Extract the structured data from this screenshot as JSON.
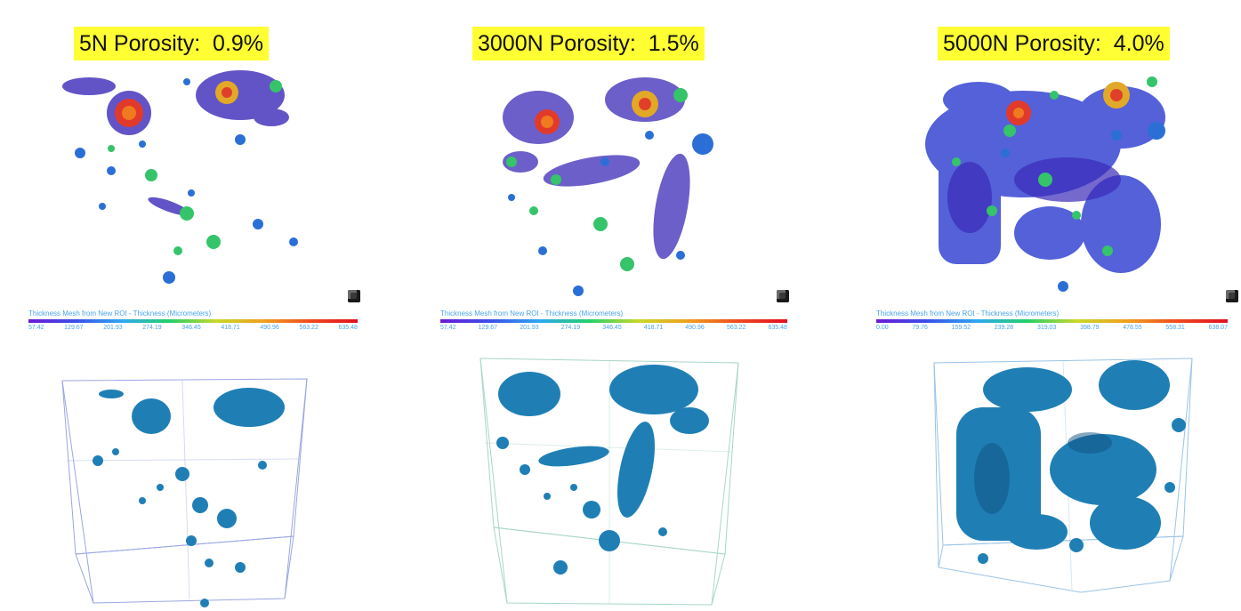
{
  "panels": [
    {
      "title": "5N Porosity:  0.9%",
      "legend_title": "Thickness Mesh from New ROI - Thickness (Micrometers)",
      "legend_ticks": [
        "57.42",
        "129.67",
        "201.93",
        "274.19",
        "346.45",
        "418.71",
        "490.96",
        "563.22",
        "635.48"
      ]
    },
    {
      "title": "3000N Porosity:  1.5%",
      "legend_title": "Thickness Mesh from New ROI - Thickness (Micrometers)",
      "legend_ticks": [
        "57.42",
        "129.67",
        "201.93",
        "274.19",
        "346.45",
        "418.71",
        "490.96",
        "563.22",
        "635.48"
      ]
    },
    {
      "title": "5000N Porosity:  4.0%",
      "legend_title": "Thickness Mesh from New ROI - Thickness (Micrometers)",
      "legend_ticks": [
        "0.00",
        "79.76",
        "159.52",
        "239.28",
        "319.03",
        "398.79",
        "478.55",
        "558.31",
        "638.07"
      ]
    }
  ],
  "colors": {
    "title_highlight": "#ffff33",
    "legend_text": "#4aa4ea",
    "pore_blue": "#1f7fb5",
    "box_edge": "#9aa6e0"
  },
  "icons": [
    "cube-orientation-icon"
  ]
}
